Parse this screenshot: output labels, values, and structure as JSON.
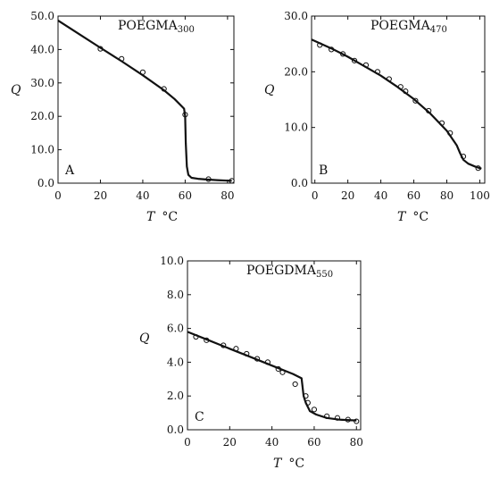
{
  "chart_data": [
    {
      "type": "scatter",
      "panel_label": "A",
      "title_main": "POEGMA",
      "title_sub": "300",
      "xlabel": "T",
      "xunit": "°C",
      "ylabel": "Q",
      "xlim": [
        0,
        83
      ],
      "ylim": [
        0,
        50
      ],
      "xticks": [
        "0",
        "20",
        "40",
        "60",
        "80"
      ],
      "yticks": [
        "0.0",
        "10.0",
        "20.0",
        "30.0",
        "40.0",
        "50.0"
      ],
      "series": [
        {
          "kind": "points",
          "x": [
            20,
            30,
            40,
            50,
            60,
            71,
            82
          ],
          "y": [
            40.2,
            37.2,
            33.2,
            28.2,
            20.5,
            1.2,
            0.7
          ]
        },
        {
          "kind": "curve",
          "x": [
            0,
            10,
            20,
            30,
            40,
            50,
            55,
            59.5,
            60,
            60.3,
            60.8,
            61.5,
            63,
            66,
            70,
            75,
            82
          ],
          "y": [
            48.7,
            44.6,
            40.5,
            36.5,
            32.3,
            27.8,
            25.2,
            22.3,
            20.0,
            12.0,
            5.0,
            2.5,
            1.6,
            1.3,
            1.1,
            0.9,
            0.7
          ]
        }
      ]
    },
    {
      "type": "scatter",
      "panel_label": "B",
      "title_main": "POEGMA",
      "title_sub": "470",
      "xlabel": "T",
      "xunit": "°C",
      "ylabel": "Q",
      "xlim": [
        -2,
        103
      ],
      "ylim": [
        0,
        30
      ],
      "xticks": [
        "0",
        "20",
        "40",
        "60",
        "80",
        "100"
      ],
      "yticks": [
        "0.0",
        "10.0",
        "20.0",
        "30.0"
      ],
      "series": [
        {
          "kind": "points",
          "x": [
            3,
            10,
            17,
            24,
            31,
            38,
            45,
            52,
            55,
            61,
            69,
            77,
            82,
            90,
            99
          ],
          "y": [
            24.8,
            24.0,
            23.2,
            22.0,
            21.2,
            20.0,
            18.7,
            17.3,
            16.5,
            14.8,
            13.0,
            10.8,
            9.0,
            4.8,
            2.7
          ]
        },
        {
          "kind": "curve",
          "x": [
            -2,
            10,
            20,
            30,
            40,
            50,
            60,
            70,
            80,
            86,
            88,
            90,
            93,
            97,
            101
          ],
          "y": [
            25.8,
            24.2,
            22.7,
            21.0,
            19.3,
            17.3,
            15.1,
            12.5,
            9.4,
            6.8,
            5.4,
            4.2,
            3.5,
            3.0,
            2.6
          ]
        }
      ]
    },
    {
      "type": "scatter",
      "panel_label": "C",
      "title_main": "POEGDMA",
      "title_sub": "550",
      "xlabel": "T",
      "xunit": "°C",
      "ylabel": "Q",
      "xlim": [
        0,
        82
      ],
      "ylim": [
        0,
        10
      ],
      "xticks": [
        "0",
        "20",
        "40",
        "60",
        "80"
      ],
      "yticks": [
        "0.0",
        "2.0",
        "4.0",
        "6.0",
        "8.0",
        "10.0"
      ],
      "series": [
        {
          "kind": "points",
          "x": [
            4,
            9,
            17,
            23,
            28,
            33,
            38,
            43,
            45,
            51,
            56,
            57,
            60,
            66,
            71,
            76,
            80
          ],
          "y": [
            5.5,
            5.3,
            5.0,
            4.8,
            4.5,
            4.2,
            4.0,
            3.6,
            3.4,
            2.7,
            2.0,
            1.6,
            1.2,
            0.8,
            0.7,
            0.6,
            0.5
          ]
        },
        {
          "kind": "curve",
          "x": [
            0,
            10,
            20,
            30,
            40,
            50,
            54,
            55,
            56,
            58,
            61,
            66,
            72,
            80
          ],
          "y": [
            5.8,
            5.3,
            4.8,
            4.3,
            3.8,
            3.3,
            3.05,
            2.0,
            1.6,
            1.1,
            0.9,
            0.7,
            0.6,
            0.55
          ]
        }
      ]
    }
  ]
}
